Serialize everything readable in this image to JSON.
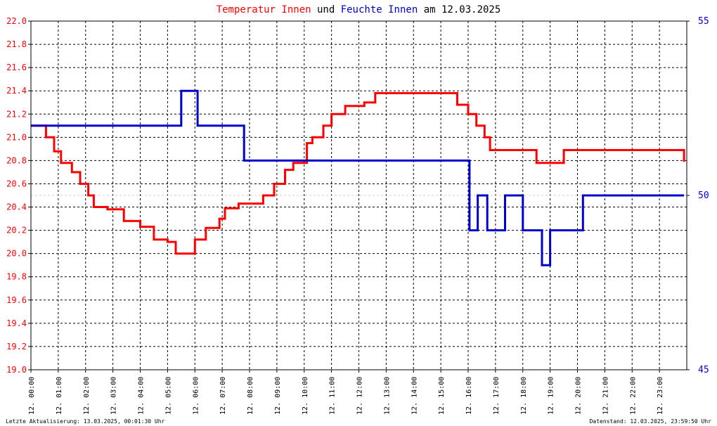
{
  "chart_data": {
    "type": "line",
    "title_parts": [
      {
        "text": "Temperatur Innen",
        "color": "#ff0000"
      },
      {
        "text": " und ",
        "color": "#000000"
      },
      {
        "text": "Feuchte Innen",
        "color": "#0000cc"
      },
      {
        "text": " am 12.03.2025",
        "color": "#000000"
      }
    ],
    "x_ticks": [
      "12. 00:00",
      "12. 01:00",
      "12. 02:00",
      "12. 03:00",
      "12. 04:00",
      "12. 05:00",
      "12. 06:00",
      "12. 07:00",
      "12. 08:00",
      "12. 09:00",
      "12. 10:00",
      "12. 11:00",
      "12. 12:00",
      "12. 13:00",
      "12. 14:00",
      "12. 15:00",
      "12. 16:00",
      "12. 17:00",
      "12. 18:00",
      "12. 19:00",
      "12. 20:00",
      "12. 21:00",
      "12. 22:00",
      "12. 23:00"
    ],
    "xlim_hours": [
      0,
      24
    ],
    "y_left": {
      "ticks": [
        "22.0",
        "21.8",
        "21.6",
        "21.4",
        "21.2",
        "21.0",
        "20.8",
        "20.6",
        "20.4",
        "20.2",
        "20.0",
        "19.8",
        "19.6",
        "19.4",
        "19.2",
        "19.0"
      ],
      "lim": [
        19.0,
        22.0
      ],
      "color": "#ff0000"
    },
    "y_right": {
      "ticks": [
        "55",
        "50",
        "45"
      ],
      "lim": [
        45,
        55
      ],
      "color": "#0000cc"
    },
    "grid": true,
    "series": [
      {
        "name": "Temperatur Innen",
        "axis": "left",
        "color": "#ff0000",
        "x": [
          0.0,
          0.3,
          0.55,
          0.85,
          1.1,
          1.5,
          1.8,
          2.1,
          2.3,
          2.8,
          3.4,
          4.0,
          4.5,
          5.0,
          5.3,
          5.7,
          6.0,
          6.4,
          6.9,
          7.1,
          7.6,
          8.5,
          8.9,
          9.3,
          9.6,
          10.1,
          10.3,
          10.7,
          11.0,
          11.5,
          12.2,
          12.6,
          13.0,
          14.0,
          15.0,
          15.6,
          16.0,
          16.3,
          16.6,
          16.8,
          17.3,
          17.9,
          18.5,
          19.2,
          19.5,
          20.0,
          21.0,
          22.0,
          23.0,
          23.8,
          23.9
        ],
        "y": [
          21.1,
          21.1,
          21.0,
          20.88,
          20.78,
          20.7,
          20.6,
          20.5,
          20.4,
          20.38,
          20.28,
          20.23,
          20.12,
          20.1,
          20.0,
          20.0,
          20.12,
          20.22,
          20.3,
          20.39,
          20.43,
          20.5,
          20.6,
          20.72,
          20.78,
          20.95,
          21.0,
          21.1,
          21.2,
          21.27,
          21.3,
          21.38,
          21.38,
          21.38,
          21.38,
          21.28,
          21.2,
          21.1,
          21.0,
          20.89,
          20.89,
          20.89,
          20.78,
          20.78,
          20.89,
          20.89,
          20.89,
          20.89,
          20.89,
          20.89,
          20.79
        ]
      },
      {
        "name": "Feuchte Innen",
        "axis": "right",
        "color": "#0000cc",
        "x": [
          0.0,
          5.4,
          5.5,
          6.0,
          6.1,
          7.8,
          7.8,
          10.7,
          11.0,
          15.9,
          16.0,
          16.05,
          16.3,
          16.35,
          16.6,
          16.7,
          16.75,
          17.2,
          17.35,
          17.55,
          17.9,
          18.0,
          18.65,
          18.7,
          18.95,
          19.0,
          20.1,
          20.2,
          23.9
        ],
        "y": [
          52.0,
          52.0,
          53.0,
          53.0,
          52.0,
          52.0,
          51.0,
          51.0,
          51.0,
          51.0,
          51.0,
          49.0,
          49.0,
          50.0,
          50.0,
          49.0,
          49.0,
          49.0,
          50.0,
          50.0,
          50.0,
          49.0,
          49.0,
          48.0,
          48.0,
          49.0,
          49.0,
          50.0,
          50.0
        ]
      }
    ]
  },
  "footer": {
    "left": "Letzte Aktualisierung: 13.03.2025, 00:01:30 Uhr",
    "right": "Datenstand: 12.03.2025, 23:59:50 Uhr"
  }
}
